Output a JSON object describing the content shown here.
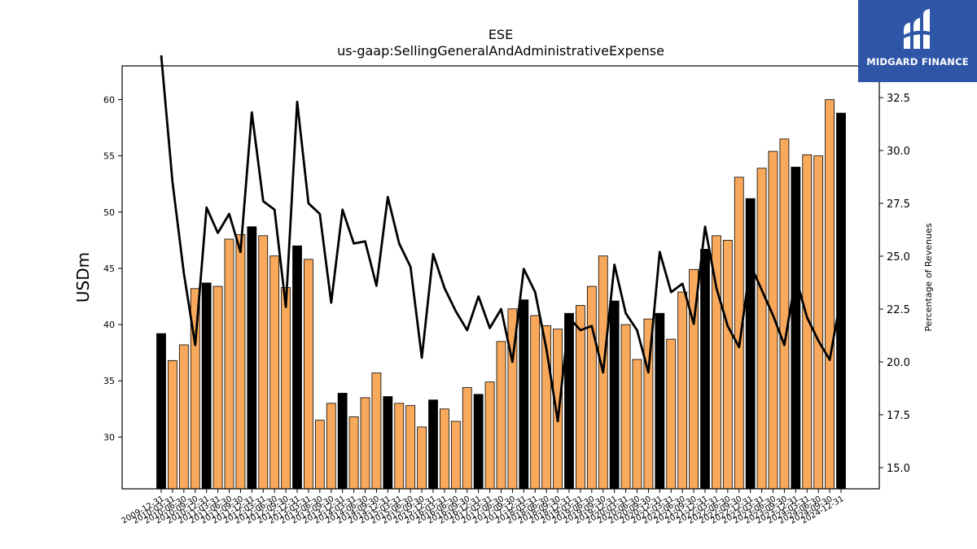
{
  "chart_data": {
    "type": "bar",
    "title": "ESE",
    "subtitle": "us-gaap:SellingGeneralAndAdministrativeExpense",
    "ylabel": "USDm",
    "y2label": "Percentage of Revenues",
    "ylim": [
      25.4,
      63
    ],
    "y2lim": [
      14.0,
      34.0
    ],
    "yticks": [
      30,
      35,
      40,
      45,
      50,
      55,
      60
    ],
    "y2ticks": [
      "15.0",
      "17.5",
      "20.0",
      "22.5",
      "25.0",
      "27.5",
      "30.0",
      "32.5"
    ],
    "categories": [
      "2009-12-31",
      "2010-03-31",
      "2010-06-30",
      "2010-09-30",
      "2010-12-31",
      "2011-03-31",
      "2011-06-30",
      "2011-09-30",
      "2011-12-31",
      "2012-03-31",
      "2012-06-30",
      "2012-09-30",
      "2012-12-31",
      "2013-03-31",
      "2013-06-30",
      "2013-09-30",
      "2013-12-31",
      "2014-03-31",
      "2014-06-30",
      "2014-09-30",
      "2014-12-31",
      "2015-03-31",
      "2015-06-30",
      "2015-09-30",
      "2015-12-31",
      "2016-03-31",
      "2016-06-30",
      "2016-09-30",
      "2016-12-31",
      "2017-03-31",
      "2017-06-30",
      "2017-09-30",
      "2017-12-31",
      "2018-03-31",
      "2018-06-30",
      "2018-09-30",
      "2018-12-31",
      "2019-03-31",
      "2019-06-30",
      "2019-09-30",
      "2019-12-31",
      "2020-03-31",
      "2020-06-30",
      "2020-09-30",
      "2020-12-31",
      "2021-03-31",
      "2021-06-30",
      "2021-09-30",
      "2021-12-31",
      "2022-03-31",
      "2022-06-30",
      "2022-09-30",
      "2022-12-31",
      "2023-03-31",
      "2023-06-30",
      "2023-09-30",
      "2023-12-31",
      "2024-03-31",
      "2024-06-30",
      "2024-09-30",
      "2024-12-31"
    ],
    "tick_labels": [
      "2009-12-31",
      "2010-03-31",
      "2010-06-30",
      "2010-09-30",
      "2010-12-31",
      "2011-03-31",
      "2011-06-30",
      "2011-09-30",
      "2011-12-31",
      "2012-03-31",
      "2012-06-30",
      "2012-09-30",
      "2012-12-31",
      "2013-03-31",
      "2013-06-30",
      "2013-09-30",
      "2013-12-31",
      "2014-03-31",
      "2014-06-30",
      "2014-09-30",
      "2014-12-31",
      "2015-03-31",
      "2015-06-30",
      "2015-09-30",
      "2015-12-31",
      "2016-03-31",
      "2016-06-30",
      "2016-09-30",
      "2016-12-31",
      "2017-03-31",
      "2017-06-30",
      "2017-09-30",
      "2017-12-31",
      "2018-03-31",
      "2018-06-30",
      "2018-09-30",
      "2018-12-31",
      "2019-03-31",
      "2019-06-30",
      "2019-09-30",
      "2019-12-31",
      "2020-03-31",
      "2020-06-30",
      "2020-09-30",
      "2020-12-31",
      "2021-03-31",
      "2021-06-30",
      "2021-09-30",
      "2021-12-31",
      "2022-03-31",
      "2022-06-30",
      "2022-09-30",
      "2022-12-31",
      "2023-03-31",
      "2023-06-30",
      "2023-09-30",
      "2023-12-31",
      "2024-03-31",
      "2024-06-30",
      "2024-09-30",
      "2024-12-31"
    ],
    "values": [
      39.2,
      36.8,
      38.2,
      43.2,
      43.7,
      43.4,
      47.6,
      48.0,
      48.7,
      47.9,
      46.1,
      43.3,
      47.0,
      45.8,
      31.5,
      33.0,
      33.9,
      31.8,
      33.5,
      35.7,
      33.6,
      33.0,
      32.8,
      30.9,
      33.3,
      32.5,
      31.4,
      34.4,
      33.8,
      34.9,
      38.5,
      41.4,
      42.2,
      40.8,
      39.9,
      39.6,
      41.0,
      41.7,
      43.4,
      46.1,
      42.1,
      40.0,
      36.9,
      40.5,
      41.0,
      38.7,
      42.9,
      44.9,
      46.7,
      47.9,
      47.5,
      53.1,
      51.2,
      53.9,
      55.4,
      56.5,
      54.0,
      55.1,
      55.0,
      60.0,
      58.8
    ],
    "year_end": [
      true,
      false,
      false,
      false,
      true,
      false,
      false,
      false,
      true,
      false,
      false,
      false,
      true,
      false,
      false,
      false,
      true,
      false,
      false,
      false,
      true,
      false,
      false,
      false,
      true,
      false,
      false,
      false,
      true,
      false,
      false,
      false,
      true,
      false,
      false,
      false,
      true,
      false,
      false,
      false,
      true,
      false,
      false,
      false,
      true,
      false,
      false,
      false,
      true,
      false,
      false,
      false,
      true,
      false,
      false,
      false,
      true,
      false,
      false,
      false,
      true
    ],
    "pct_of_revenue": [
      34.5,
      28.5,
      24.2,
      20.8,
      27.3,
      26.1,
      27.0,
      25.2,
      31.8,
      27.6,
      27.2,
      22.6,
      32.3,
      27.5,
      27.0,
      22.8,
      27.2,
      25.6,
      25.7,
      23.6,
      27.8,
      25.6,
      24.5,
      20.2,
      25.1,
      23.5,
      22.4,
      21.5,
      23.1,
      21.6,
      22.5,
      20.0,
      24.4,
      23.3,
      20.6,
      17.2,
      22.1,
      21.5,
      21.7,
      19.5,
      24.6,
      22.3,
      21.5,
      19.5,
      25.2,
      23.3,
      23.7,
      21.8,
      26.4,
      23.5,
      21.7,
      20.7,
      24.6,
      23.4,
      22.2,
      20.8,
      24.0,
      22.1,
      21.0,
      20.1,
      23.1
    ],
    "colors": {
      "bar": "#f9a95b",
      "bar_year_end": "#000000",
      "line": "#000000"
    },
    "grid": false,
    "legend": "none"
  },
  "logo": {
    "text": "MIDGARD FINANCE",
    "mark": "midgard-logo",
    "background": "#2f56a6"
  }
}
